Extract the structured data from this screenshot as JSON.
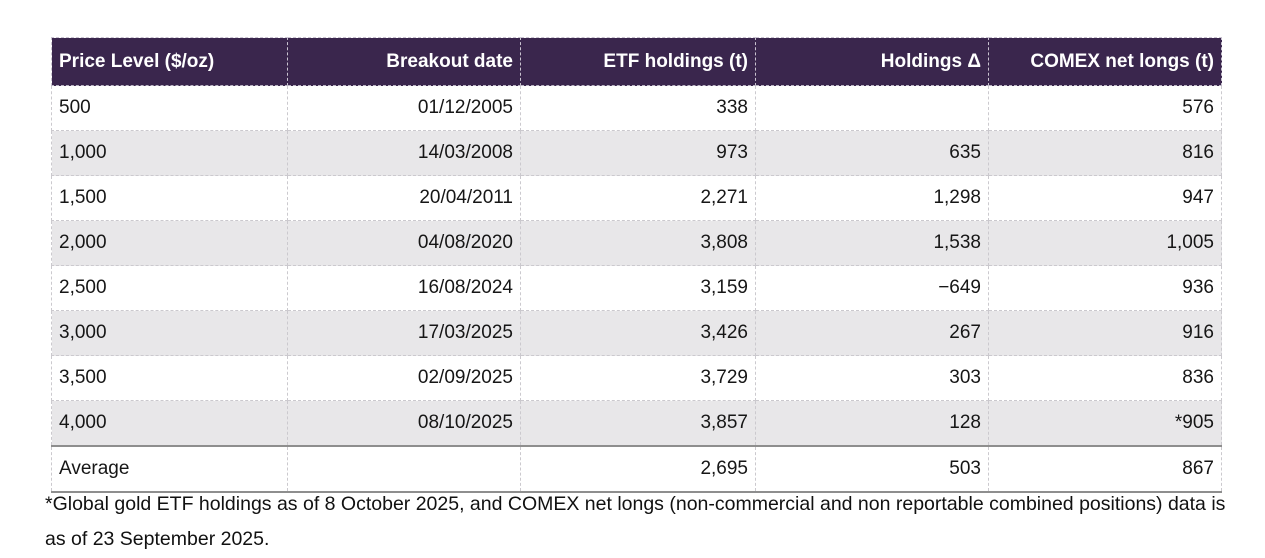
{
  "table": {
    "headers": [
      "Price Level ($/oz)",
      "Breakout date",
      "ETF holdings (t)",
      "Holdings Δ",
      "COMEX net longs (t)"
    ],
    "rows": [
      [
        "500",
        "01/12/2005",
        "338",
        "",
        "576"
      ],
      [
        "1,000",
        "14/03/2008",
        "973",
        "635",
        "816"
      ],
      [
        "1,500",
        "20/04/2011",
        "2,271",
        "1,298",
        "947"
      ],
      [
        "2,000",
        "04/08/2020",
        "3,808",
        "1,538",
        "1,005"
      ],
      [
        "2,500",
        "16/08/2024",
        "3,159",
        "−649",
        "936"
      ],
      [
        "3,000",
        "17/03/2025",
        "3,426",
        "267",
        "916"
      ],
      [
        "3,500",
        "02/09/2025",
        "3,729",
        "303",
        "836"
      ],
      [
        "4,000",
        "08/10/2025",
        "3,857",
        "128",
        "*905"
      ],
      [
        "Average",
        "",
        "2,695",
        "503",
        "867"
      ]
    ]
  },
  "footnote": {
    "text": "*Global gold ETF holdings as of 8 October 2025, and COMEX net longs (non-commercial and non reportable combined positions) data is as of 23 September 2025."
  },
  "colors": {
    "header_bg": "#3a264d",
    "header_text": "#ffffff",
    "row_alt_bg": "#e8e7e9",
    "average_border": "#8e8e8e"
  },
  "chart_data": {
    "type": "table",
    "title": "Gold price breakout levels vs ETF holdings and COMEX net longs",
    "columns": [
      "Price Level ($/oz)",
      "Breakout date",
      "ETF holdings (t)",
      "Holdings Δ",
      "COMEX net longs (t)"
    ],
    "rows": [
      {
        "price_level": 500,
        "breakout_date": "01/12/2005",
        "etf_holdings_t": 338,
        "holdings_delta_t": null,
        "comex_net_longs_t": 576
      },
      {
        "price_level": 1000,
        "breakout_date": "14/03/2008",
        "etf_holdings_t": 973,
        "holdings_delta_t": 635,
        "comex_net_longs_t": 816
      },
      {
        "price_level": 1500,
        "breakout_date": "20/04/2011",
        "etf_holdings_t": 2271,
        "holdings_delta_t": 1298,
        "comex_net_longs_t": 947
      },
      {
        "price_level": 2000,
        "breakout_date": "04/08/2020",
        "etf_holdings_t": 3808,
        "holdings_delta_t": 1538,
        "comex_net_longs_t": 1005
      },
      {
        "price_level": 2500,
        "breakout_date": "16/08/2024",
        "etf_holdings_t": 3159,
        "holdings_delta_t": -649,
        "comex_net_longs_t": 936
      },
      {
        "price_level": 3000,
        "breakout_date": "17/03/2025",
        "etf_holdings_t": 3426,
        "holdings_delta_t": 267,
        "comex_net_longs_t": 916
      },
      {
        "price_level": 3500,
        "breakout_date": "02/09/2025",
        "etf_holdings_t": 3729,
        "holdings_delta_t": 303,
        "comex_net_longs_t": 836
      },
      {
        "price_level": 4000,
        "breakout_date": "08/10/2025",
        "etf_holdings_t": 3857,
        "holdings_delta_t": 128,
        "comex_net_longs_t": 905,
        "note": "asterisk footnote marker shown as *905"
      }
    ],
    "summary_row": {
      "label": "Average",
      "etf_holdings_t": 2695,
      "holdings_delta_t": 503,
      "comex_net_longs_t": 867
    },
    "footnote": "*Global gold ETF holdings as of 8 October 2025, and COMEX net longs (non-commercial and non reportable combined positions) data is as of 23 September 2025."
  }
}
